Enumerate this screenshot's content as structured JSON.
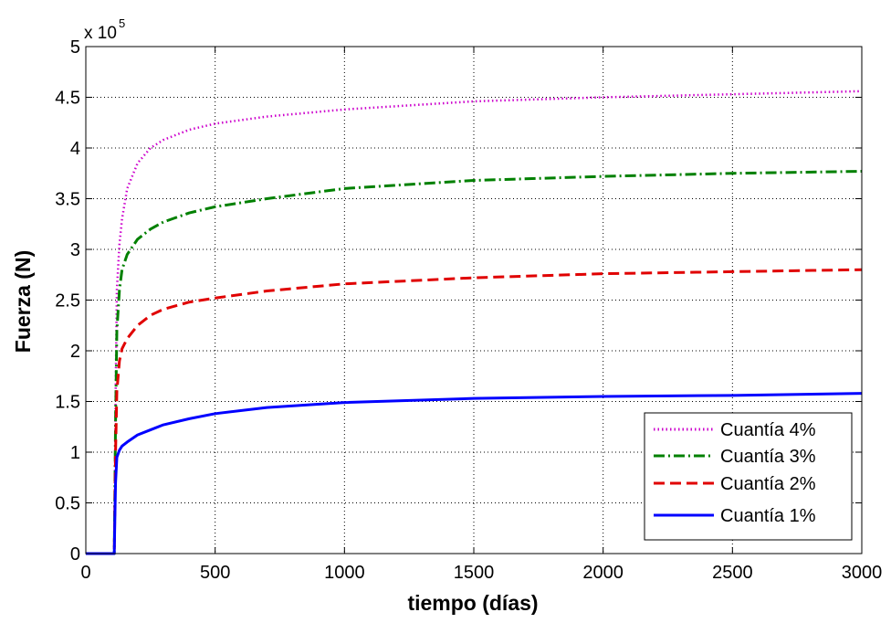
{
  "chart_data": {
    "type": "line",
    "xlabel": "tiempo (días)",
    "ylabel": "Fuerza (N)",
    "y_multiplier_label": "x 10",
    "y_multiplier_exponent": "5",
    "xlim": [
      0,
      3000
    ],
    "ylim": [
      0,
      5
    ],
    "x_ticks": [
      0,
      500,
      1000,
      1500,
      2000,
      2500,
      3000
    ],
    "y_ticks": [
      0,
      0.5,
      1,
      1.5,
      2,
      2.5,
      3,
      3.5,
      4,
      4.5,
      5
    ],
    "x_tick_labels": [
      "0",
      "500",
      "1000",
      "1500",
      "2000",
      "2500",
      "3000"
    ],
    "y_tick_labels": [
      "0",
      "0.5",
      "1",
      "1.5",
      "2",
      "2.5",
      "3",
      "3.5",
      "4",
      "4.5",
      "5"
    ],
    "grid": true,
    "legend_position": "bottom-right",
    "series": [
      {
        "name": "Cuantía 4%",
        "color": "#cc00cc",
        "style": "dotted",
        "x": [
          0,
          110,
          112,
          115,
          120,
          130,
          140,
          160,
          200,
          250,
          300,
          400,
          500,
          700,
          1000,
          1500,
          2000,
          2500,
          3000
        ],
        "y": [
          0,
          0,
          0.6,
          1.5,
          2.6,
          3.05,
          3.3,
          3.6,
          3.85,
          4.0,
          4.08,
          4.18,
          4.24,
          4.31,
          4.38,
          4.46,
          4.5,
          4.53,
          4.56
        ]
      },
      {
        "name": "Cuantía 3%",
        "color": "#008000",
        "style": "dashdot",
        "x": [
          0,
          110,
          112,
          115,
          120,
          130,
          140,
          160,
          200,
          250,
          300,
          400,
          500,
          700,
          1000,
          1500,
          2000,
          2500,
          3000
        ],
        "y": [
          0,
          0,
          0.5,
          1.3,
          2.2,
          2.6,
          2.8,
          2.95,
          3.1,
          3.2,
          3.27,
          3.36,
          3.42,
          3.5,
          3.6,
          3.68,
          3.72,
          3.75,
          3.77
        ]
      },
      {
        "name": "Cuantía 2%",
        "color": "#e00000",
        "style": "dashed",
        "x": [
          0,
          110,
          112,
          115,
          120,
          130,
          140,
          160,
          200,
          250,
          300,
          400,
          500,
          700,
          1000,
          1500,
          2000,
          2500,
          3000
        ],
        "y": [
          0,
          0,
          0.4,
          1.0,
          1.6,
          1.9,
          2.02,
          2.12,
          2.25,
          2.35,
          2.41,
          2.48,
          2.52,
          2.59,
          2.66,
          2.72,
          2.76,
          2.78,
          2.8
        ]
      },
      {
        "name": "Cuantía 1%",
        "color": "#0000ff",
        "style": "solid",
        "x": [
          0,
          110,
          112,
          115,
          120,
          130,
          140,
          160,
          200,
          250,
          300,
          400,
          500,
          700,
          1000,
          1500,
          2000,
          2500,
          3000
        ],
        "y": [
          0,
          0,
          0.3,
          0.7,
          0.95,
          1.02,
          1.06,
          1.1,
          1.17,
          1.22,
          1.27,
          1.33,
          1.38,
          1.44,
          1.49,
          1.53,
          1.55,
          1.56,
          1.58
        ]
      }
    ]
  }
}
